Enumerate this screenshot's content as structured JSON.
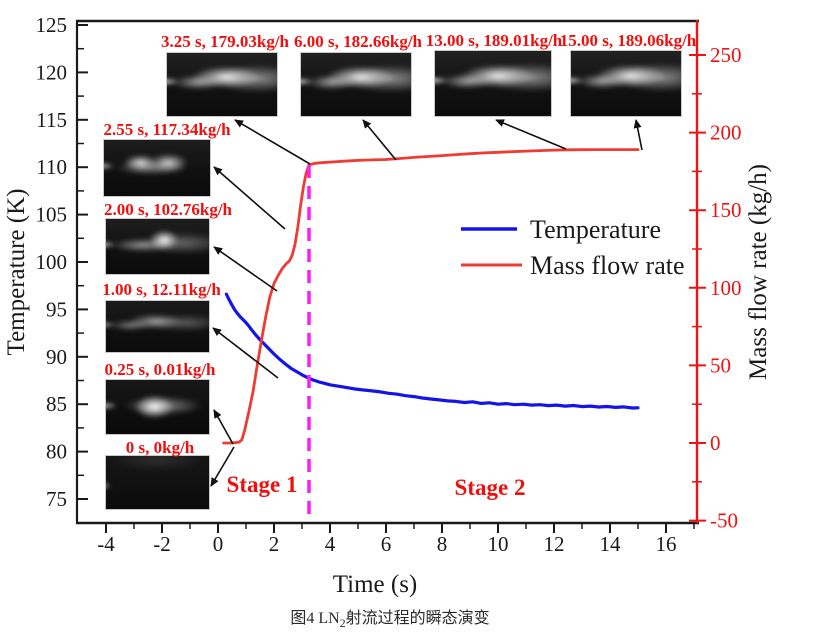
{
  "figure": {
    "caption": {
      "prefix": "图4 LN",
      "sub": "2",
      "suffix": "射流过程的瞬态演变"
    },
    "stage_labels": {
      "stage1": "Stage 1",
      "stage2": "Stage 2"
    },
    "colors": {
      "temperature_line": "#1414e8",
      "mass_flow_line": "#ee3b33",
      "annotation_text": "#ef0f0f",
      "right_axis": "#ee1212",
      "stage_divider": "#ff1cfc",
      "axis_black": "#1a1a1a"
    }
  },
  "legend": {
    "items": [
      {
        "label": "Temperature",
        "color": "#1414e8"
      },
      {
        "label": "Mass flow rate",
        "color": "#ee3b33"
      }
    ]
  },
  "chart_data": {
    "type": "line",
    "xlabel": "Time (s)",
    "ylabel_left": "Temperature (K)",
    "ylabel_right": "Mass flow rate (kg/h)",
    "x_axis": {
      "range": [
        -5,
        17
      ],
      "major_ticks": [
        -4,
        -2,
        0,
        2,
        4,
        6,
        8,
        10,
        12,
        14,
        16
      ],
      "minor_ticks": [
        -3,
        -1,
        1,
        3,
        5,
        7,
        9,
        11,
        13,
        15,
        17
      ]
    },
    "y_left": {
      "range": [
        72.5,
        125.5
      ],
      "major_ticks": [
        75,
        80,
        85,
        90,
        95,
        100,
        105,
        110,
        115,
        120,
        125
      ],
      "minor_ticks": [
        77.5,
        82.5,
        87.5,
        92.5,
        97.5,
        102.5,
        107.5,
        112.5,
        117.5,
        122.5
      ]
    },
    "y_right": {
      "range": [
        -55,
        272
      ],
      "major_ticks": [
        -50,
        0,
        50,
        100,
        150,
        200,
        250
      ],
      "minor_ticks": [
        -25,
        25,
        75,
        125,
        175,
        225
      ]
    },
    "stage_divider_x": 3.25,
    "series": [
      {
        "name": "Temperature",
        "axis": "left",
        "color": "#1414e8",
        "x": [
          0.3,
          0.4,
          0.5,
          0.6,
          0.7,
          0.8,
          0.9,
          1.0,
          1.1,
          1.2,
          1.35,
          1.5,
          1.65,
          1.8,
          2.0,
          2.2,
          2.4,
          2.6,
          2.8,
          3.0,
          3.2,
          3.4,
          3.6,
          3.8,
          4.0,
          4.3,
          4.6,
          4.9,
          5.2,
          5.5,
          5.8,
          6.1,
          6.4,
          6.7,
          7.0,
          7.3,
          7.6,
          7.9,
          8.2,
          8.5,
          8.8,
          9.1,
          9.4,
          9.7,
          10.0,
          10.3,
          10.6,
          10.9,
          11.2,
          11.5,
          11.8,
          12.1,
          12.4,
          12.7,
          13.0,
          13.3,
          13.6,
          13.9,
          14.2,
          14.5,
          14.8,
          15.0
        ],
        "y": [
          96.6,
          96.0,
          95.45,
          94.95,
          94.55,
          94.2,
          93.9,
          93.6,
          93.25,
          92.85,
          92.3,
          91.8,
          91.35,
          90.9,
          90.3,
          89.75,
          89.25,
          88.8,
          88.45,
          88.1,
          87.8,
          87.55,
          87.35,
          87.2,
          87.05,
          86.9,
          86.75,
          86.6,
          86.5,
          86.4,
          86.3,
          86.15,
          86.05,
          85.9,
          85.8,
          85.65,
          85.55,
          85.45,
          85.35,
          85.3,
          85.18,
          85.25,
          85.08,
          85.15,
          85.0,
          85.06,
          84.95,
          85.0,
          84.9,
          84.95,
          84.85,
          84.9,
          84.8,
          84.86,
          84.75,
          84.8,
          84.7,
          84.76,
          84.66,
          84.72,
          84.6,
          84.62
        ]
      },
      {
        "name": "Mass flow rate",
        "axis": "right",
        "color": "#ee3b33",
        "x": [
          0.2,
          0.5,
          0.75,
          0.85,
          0.95,
          1.0,
          1.1,
          1.25,
          1.4,
          1.55,
          1.7,
          1.85,
          2.0,
          2.15,
          2.3,
          2.45,
          2.55,
          2.65,
          2.75,
          2.85,
          2.95,
          3.05,
          3.15,
          3.25,
          3.45,
          3.7,
          4.0,
          4.5,
          5.0,
          5.5,
          6.0,
          6.5,
          7.0,
          7.5,
          8.0,
          8.5,
          9.0,
          9.5,
          10.0,
          10.5,
          11.0,
          11.5,
          12.0,
          12.5,
          13.0,
          13.5,
          14.0,
          14.5,
          15.0
        ],
        "y": [
          0,
          0,
          0.5,
          2,
          8,
          12.11,
          20,
          33,
          50,
          66,
          81,
          94,
          102.76,
          108,
          112.5,
          115.8,
          117.34,
          121,
          128,
          139,
          153,
          165,
          174,
          179.03,
          180.2,
          180.6,
          181.0,
          181.6,
          182.1,
          182.4,
          182.66,
          183.3,
          184.0,
          184.6,
          185.2,
          185.8,
          186.4,
          186.9,
          187.3,
          187.7,
          188.1,
          188.4,
          188.7,
          188.9,
          189.01,
          189.03,
          189.04,
          189.05,
          189.06
        ]
      }
    ],
    "image_annotations": [
      {
        "label": "0 s, 0kg/h",
        "time_s": 0,
        "flow_kg_h": 0
      },
      {
        "label": "0.25 s, 0.01kg/h",
        "time_s": 0.25,
        "flow_kg_h": 0.01
      },
      {
        "label": "1.00 s, 12.11kg/h",
        "time_s": 1.0,
        "flow_kg_h": 12.11
      },
      {
        "label": "2.00 s, 102.76kg/h",
        "time_s": 2.0,
        "flow_kg_h": 102.76
      },
      {
        "label": "2.55 s, 117.34kg/h",
        "time_s": 2.55,
        "flow_kg_h": 117.34
      },
      {
        "label": "3.25 s, 179.03kg/h",
        "time_s": 3.25,
        "flow_kg_h": 179.03
      },
      {
        "label": "6.00 s, 182.66kg/h",
        "time_s": 6.0,
        "flow_kg_h": 182.66
      },
      {
        "label": "13.00 s, 189.01kg/h",
        "time_s": 13.0,
        "flow_kg_h": 189.01
      },
      {
        "label": "15.00 s, 189.06kg/h",
        "time_s": 15.0,
        "flow_kg_h": 189.06
      }
    ]
  }
}
